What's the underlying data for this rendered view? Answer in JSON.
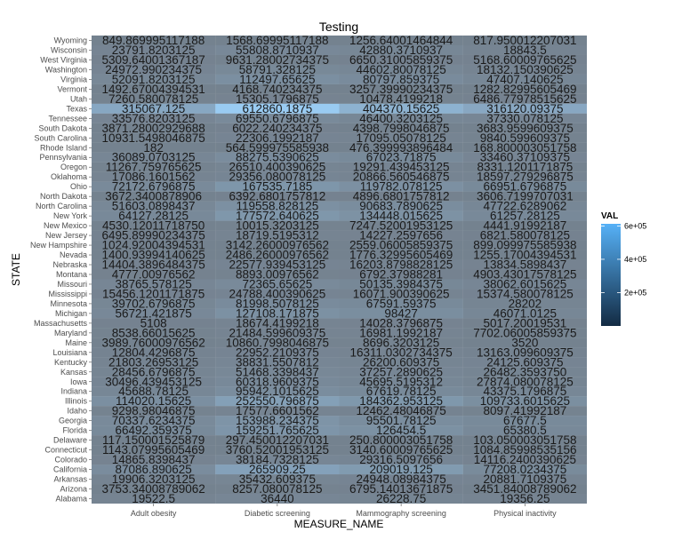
{
  "chart_data": {
    "type": "heatmap",
    "title": "Testing",
    "xlabel": "MEASURE_NAME",
    "ylabel": "STATE",
    "legend_title": "VAL",
    "legend_ticks": [
      "2e+05",
      "4e+05",
      "6e+05"
    ],
    "legend_tick_values": [
      200000,
      400000,
      600000
    ],
    "color_range": [
      0,
      612860.1875
    ],
    "legend_placement": "right",
    "colors": {
      "low": "#132B43",
      "high": "#56B1F7",
      "panel": "#ebebeb",
      "grid": "#ffffff"
    },
    "columns": [
      "Adult obesity",
      "Diabetic screening",
      "Mammography screening",
      "Physical inactivity"
    ],
    "rows": [
      "Wyoming",
      "Wisconsin",
      "West Virginia",
      "Washington",
      "Virginia",
      "Vermont",
      "Utah",
      "Texas",
      "Tennessee",
      "South Dakota",
      "South Carolina",
      "Rhode Island",
      "Pennsylvania",
      "Oregon",
      "Oklahoma",
      "Ohio",
      "North Dakota",
      "North Carolina",
      "New York",
      "New Mexico",
      "New Jersey",
      "New Hampshire",
      "Nevada",
      "Nebraska",
      "Montana",
      "Missouri",
      "Mississippi",
      "Minnesota",
      "Michigan",
      "Massachusetts",
      "Maryland",
      "Maine",
      "Louisiana",
      "Kentucky",
      "Kansas",
      "Iowa",
      "Indiana",
      "Illinois",
      "Idaho",
      "Georgia",
      "Florida",
      "Delaware",
      "Connecticut",
      "Colorado",
      "California",
      "Arkansas",
      "Arizona",
      "Alabama"
    ],
    "labels": [
      [
        "849.869995117188",
        "1568.69995117188",
        "1256.64001464844",
        "817.950012207031"
      ],
      [
        "23791.8203125",
        "55808.8710937",
        "42880.3710937",
        "18843.5"
      ],
      [
        "5309.64001367187",
        "9631.28002734375",
        "6650.31005859375",
        "5168.60009765625"
      ],
      [
        "24972.990234375",
        "58791.328125",
        "44602.80078125",
        "18132.150390625"
      ],
      [
        "52091.8203125",
        "112497.65625",
        "80797.859375",
        "47407.140625"
      ],
      [
        "1492.67004394531",
        "4168.740234375",
        "3257.39990234375",
        "1282.82995605469"
      ],
      [
        "7260.580078125",
        "15305.1796875",
        "10478.4199218",
        "6486.77978515625"
      ],
      [
        "315067.125",
        "612860.1875",
        "404370.15625",
        "316120.09375"
      ],
      [
        "33576.8203125",
        "69550.6796875",
        "46400.3203125",
        "37330.078125"
      ],
      [
        "3871.28002929688",
        "6022.240234375",
        "4398.7998046875",
        "3683.9599609375"
      ],
      [
        "10931.5498046875",
        "22306.1992187",
        "17095.05078125",
        "9840.599609375"
      ],
      [
        "182",
        "564.599975585938",
        "476.399993896484",
        "168.800003051758"
      ],
      [
        "36089.0703125",
        "88275.5390625",
        "67023.71875",
        "33460.37109375"
      ],
      [
        "11267.759765625",
        "26510.400390625",
        "19291.439453125",
        "8331.1201171875"
      ],
      [
        "17086.1601562",
        "29356.080078125",
        "20866.560546875",
        "18597.279296875"
      ],
      [
        "72172.6796875",
        "167535.7185",
        "119782.078125",
        "66951.6796875"
      ],
      [
        "3672.3400878906",
        "6392.6801757812",
        "4896.6801757812",
        "3606.7199707031"
      ],
      [
        "51603.0898437",
        "119558.828125",
        "90683.7890625",
        "47722.6289062"
      ],
      [
        "64127.28125",
        "177572.640625",
        "134448.015625",
        "61257.28125"
      ],
      [
        "4530.12011718750",
        "10015.3203125",
        "7247.52001953125",
        "4441.91992187"
      ],
      [
        "6495.89990234375",
        "18719.5195312",
        "14227.2597656",
        "6821.580078125"
      ],
      [
        "1024.92004394531",
        "3142.26000976562",
        "2559.06005859375",
        "899.099975585938"
      ],
      [
        "1400.93994140625",
        "2486.26000976562",
        "1776.32995605469",
        "1255.17004394531"
      ],
      [
        "14404.3896484375",
        "22577.939453125",
        "16203.8798828125",
        "13834.5898437"
      ],
      [
        "4777.00976562",
        "8893.00976562",
        "6792.37988281",
        "4903.43017578125"
      ],
      [
        "38765.578125",
        "72365.65625",
        "50135.3984375",
        "38062.6015625"
      ],
      [
        "15456.1201171875",
        "24788.400390625",
        "16071.900390625",
        "15374.580078125"
      ],
      [
        "39702.6796875",
        "81998.5078125",
        "67591.59375",
        "28202"
      ],
      [
        "56721.421875",
        "127108.171875",
        "98427",
        "46071.0125"
      ],
      [
        "5108",
        "18674.4199218",
        "14028.3796875",
        "5017.20019531"
      ],
      [
        "8538.66015625",
        "21484.599609375",
        "16981.1992187",
        "7702.06005859375"
      ],
      [
        "3989.76000976562",
        "10860.7998046875",
        "8696.3203125",
        "3520"
      ],
      [
        "12804.4296875",
        "22952.2109375",
        "16311.0302734375",
        "13163.099609375"
      ],
      [
        "21803.26953125",
        "38831.5507812",
        "26200.609375",
        "24125.609375"
      ],
      [
        "28456.6796875",
        "51468.3398437",
        "37257.2890625",
        "26482.3593750"
      ],
      [
        "30496.439453125",
        "60318.9609375",
        "45695.5195312",
        "27874.080078125"
      ],
      [
        "45688.78125",
        "95942.1015625",
        "67619.78125",
        "43375.1796875"
      ],
      [
        "114020.15625",
        "252550.796875",
        "184362.953125",
        "109733.6015625"
      ],
      [
        "9298.98046875",
        "17577.6601562",
        "12462.48046875",
        "8097.41992187"
      ],
      [
        "70337.6234375",
        "153988.234375",
        "95501.78125",
        "67677.5"
      ],
      [
        "66492.359375",
        "159251.765625",
        "126454.5",
        "65380.5"
      ],
      [
        "117.150001525879",
        "297.450012207031",
        "250.800003051758",
        "103.050003051758"
      ],
      [
        "1143.07995605469",
        "3760.52001953125",
        "3140.60009765625",
        "1084.85998535156"
      ],
      [
        "14865.8398437",
        "38184.7328125",
        "29316.5097656",
        "14116.2400390625"
      ],
      [
        "87086.890625",
        "265909.25",
        "209019.125",
        "77208.0234375"
      ],
      [
        "19906.3203125",
        "35432.609375",
        "24948.08984375",
        "20881.7109375"
      ],
      [
        "3753.34008789062",
        "8257.080078125",
        "6795.14013671875",
        "3451.84008789062"
      ],
      [
        "19522.5",
        "36440",
        "26228.75",
        "19356.25"
      ]
    ]
  }
}
